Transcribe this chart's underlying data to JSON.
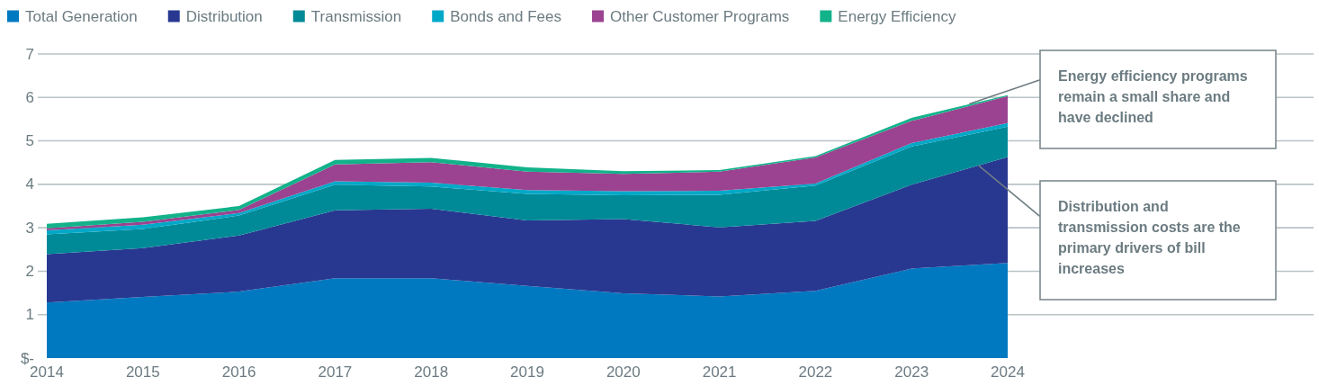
{
  "chart_data": {
    "type": "area",
    "stacked": true,
    "x": [
      2014,
      2015,
      2016,
      2017,
      2018,
      2019,
      2020,
      2021,
      2022,
      2023,
      2024
    ],
    "xlim": [
      2014,
      2024
    ],
    "xticks": [
      2014,
      2015,
      2016,
      2017,
      2018,
      2019,
      2020,
      2021,
      2022,
      2023,
      2024
    ],
    "ylim": [
      0,
      7
    ],
    "yticks": [
      {
        "value": 0,
        "label": "$-"
      },
      1,
      2,
      3,
      4,
      5,
      6,
      7
    ],
    "grid": "y",
    "legend": "top left",
    "series": [
      {
        "name": "Total Generation",
        "color": "#0079c1",
        "values": [
          1.28,
          1.41,
          1.53,
          1.84,
          1.84,
          1.66,
          1.49,
          1.42,
          1.55,
          2.06,
          2.19
        ]
      },
      {
        "name": "Distribution",
        "color": "#283891",
        "values": [
          1.11,
          1.12,
          1.29,
          1.56,
          1.6,
          1.51,
          1.71,
          1.59,
          1.61,
          1.93,
          2.44
        ]
      },
      {
        "name": "Transmission",
        "color": "#008a97",
        "values": [
          0.46,
          0.44,
          0.46,
          0.59,
          0.51,
          0.61,
          0.55,
          0.75,
          0.81,
          0.88,
          0.7
        ]
      },
      {
        "name": "Bonds and Fees",
        "color": "#00a8c8",
        "values": [
          0.09,
          0.1,
          0.06,
          0.08,
          0.09,
          0.09,
          0.09,
          0.09,
          0.05,
          0.08,
          0.08
        ]
      },
      {
        "name": "Other Customer Programs",
        "color": "#9b4390",
        "values": [
          0.05,
          0.07,
          0.07,
          0.39,
          0.47,
          0.42,
          0.4,
          0.44,
          0.6,
          0.51,
          0.62
        ]
      },
      {
        "name": "Energy Efficiency",
        "color": "#12b28a",
        "values": [
          0.1,
          0.1,
          0.09,
          0.1,
          0.1,
          0.1,
          0.06,
          0.04,
          0.03,
          0.07,
          0.02
        ]
      }
    ],
    "annotations": [
      {
        "text": "Energy efficiency programs remain a small share and have declined",
        "x": 2023.6,
        "y": 5.85
      },
      {
        "text": "Distribution and transmission costs are the primary drivers of bill increases",
        "x": 2023.7,
        "y": 4.43
      }
    ]
  }
}
